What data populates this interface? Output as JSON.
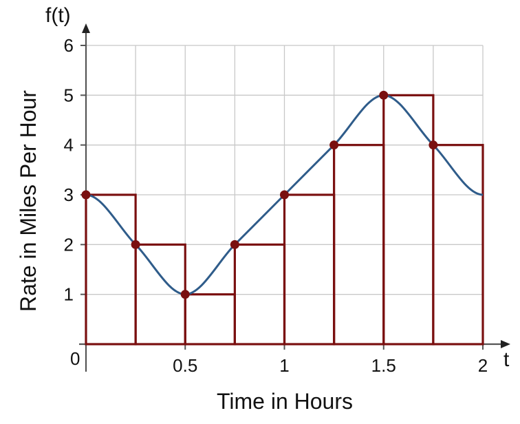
{
  "chart_data": {
    "type": "line",
    "function_label": "f(t)",
    "xlabel": "Time in Hours",
    "ylabel": "Rate in Miles Per Hour",
    "x_axis_name": "t",
    "origin_label": "0",
    "xlim": [
      0,
      2
    ],
    "ylim": [
      0,
      6
    ],
    "x_ticks": [
      0.5,
      1,
      1.5,
      2
    ],
    "x_tick_labels": [
      "0.5",
      "1",
      "1.5",
      "2"
    ],
    "y_ticks": [
      1,
      2,
      3,
      4,
      5,
      6
    ],
    "y_tick_labels": [
      "1",
      "2",
      "3",
      "4",
      "5",
      "6"
    ],
    "grid": true,
    "series": [
      {
        "x": [
          0,
          0.25,
          0.5,
          0.75,
          1,
          1.25,
          1.5,
          1.75,
          2
        ],
        "values": [
          3,
          2,
          1,
          2,
          3,
          4,
          5,
          4,
          3
        ]
      }
    ],
    "left_endpoint_rectangles": [
      {
        "x0": 0,
        "x1": 0.25,
        "height": 3
      },
      {
        "x0": 0.25,
        "x1": 0.5,
        "height": 2
      },
      {
        "x0": 0.5,
        "x1": 0.75,
        "height": 1
      },
      {
        "x0": 0.75,
        "x1": 1,
        "height": 2
      },
      {
        "x0": 1,
        "x1": 1.25,
        "height": 3
      },
      {
        "x0": 1.25,
        "x1": 1.5,
        "height": 4
      },
      {
        "x0": 1.5,
        "x1": 1.75,
        "height": 5
      },
      {
        "x0": 1.75,
        "x1": 2,
        "height": 4
      }
    ],
    "sample_points": [
      {
        "x": 0,
        "y": 3
      },
      {
        "x": 0.25,
        "y": 2
      },
      {
        "x": 0.5,
        "y": 1
      },
      {
        "x": 0.75,
        "y": 2
      },
      {
        "x": 1,
        "y": 3
      },
      {
        "x": 1.25,
        "y": 4
      },
      {
        "x": 1.5,
        "y": 5
      },
      {
        "x": 1.75,
        "y": 4
      }
    ],
    "colors": {
      "curve": "#2f5c8a",
      "rectangles": "#7a1010",
      "points": "#7a1010",
      "grid": "#c8c8c8",
      "axes": "#555555"
    }
  }
}
